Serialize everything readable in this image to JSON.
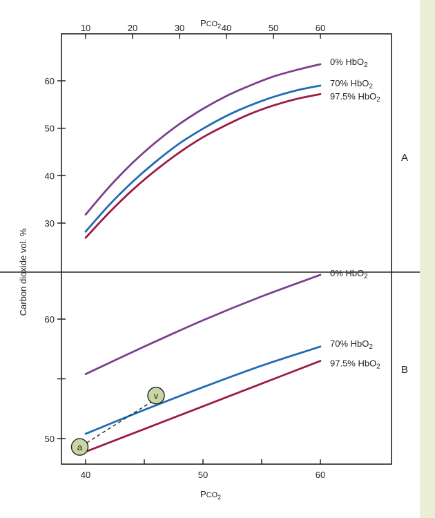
{
  "chart_data": [
    {
      "panel": "A",
      "type": "line",
      "title": "",
      "xlabel": "Pco2",
      "x_axis_position": "top",
      "ylabel": "Carbon dioxide vol. %",
      "xlim": [
        10,
        60
      ],
      "ylim": [
        25,
        65
      ],
      "xticks": [
        10,
        20,
        30,
        40,
        50,
        60
      ],
      "yticks": [
        30,
        40,
        50,
        60
      ],
      "grid": false,
      "series": [
        {
          "name": "0% HbO2",
          "color": "#7a3f8f",
          "x": [
            10,
            15,
            20,
            25,
            30,
            35,
            40,
            45,
            50,
            55,
            60
          ],
          "y": [
            31.8,
            37.6,
            42.7,
            47.1,
            50.9,
            54.1,
            56.8,
            59.0,
            60.9,
            62.3,
            63.5
          ]
        },
        {
          "name": "70% HbO2",
          "color": "#1f6bb5",
          "x": [
            10,
            15,
            20,
            25,
            30,
            35,
            40,
            45,
            50,
            55,
            60
          ],
          "y": [
            28.2,
            33.8,
            38.7,
            43.0,
            46.8,
            49.9,
            52.6,
            54.8,
            56.6,
            58.0,
            59.0
          ]
        },
        {
          "name": "97.5% HbO2",
          "color": "#9c1a45",
          "x": [
            10,
            15,
            20,
            25,
            30,
            35,
            40,
            45,
            50,
            55,
            60
          ],
          "y": [
            26.9,
            32.2,
            37.0,
            41.2,
            44.9,
            48.1,
            50.7,
            53.0,
            54.8,
            56.2,
            57.2
          ]
        }
      ]
    },
    {
      "panel": "B",
      "type": "line",
      "title": "",
      "xlabel": "Pco2",
      "ylabel": "Carbon dioxide vol. %",
      "xlim": [
        38,
        66
      ],
      "ylim": [
        48.6,
        65
      ],
      "xticks": [
        40,
        45,
        50,
        55,
        60
      ],
      "xtick_labels": [
        "40",
        "",
        "50",
        "",
        "60"
      ],
      "yticks": [
        50,
        55,
        60
      ],
      "ytick_labels": [
        "50",
        "",
        "60"
      ],
      "grid": false,
      "series": [
        {
          "name": "0% HbO2",
          "color": "#7a3f8f",
          "x": [
            40,
            45,
            50,
            55,
            60
          ],
          "y": [
            55.4,
            57.7,
            59.9,
            61.9,
            63.7
          ]
        },
        {
          "name": "70% HbO2",
          "color": "#1f6bb5",
          "x": [
            40,
            45,
            50,
            55,
            60
          ],
          "y": [
            50.4,
            52.4,
            54.3,
            56.1,
            57.7
          ]
        },
        {
          "name": "97.5% HbO2",
          "color": "#9c1a45",
          "x": [
            40,
            45,
            50,
            55,
            60
          ],
          "y": [
            48.9,
            50.8,
            52.7,
            54.6,
            56.5
          ]
        }
      ],
      "annotations": [
        {
          "label": "a",
          "x": 39.5,
          "y": 49.3
        },
        {
          "label": "v",
          "x": 46,
          "y": 53.6
        }
      ],
      "dashed_line": {
        "from": "a",
        "to": "v"
      }
    }
  ],
  "labels": {
    "top_axis_title_main": "P",
    "top_axis_title_sub": "CO",
    "top_axis_title_subscript": "2",
    "bottom_axis_title_main": "P",
    "bottom_axis_title_sub": "CO",
    "bottom_axis_title_subscript": "2",
    "y_axis_title": "Carbon dioxide vol. %",
    "panel_a": "A",
    "panel_b": "B",
    "hbo2_main": "HbO",
    "hbo2_sub": "2"
  },
  "colors": {
    "background": "#e9eed7",
    "panel": "#ffffff",
    "marker_fill": "#c9d6a4"
  }
}
